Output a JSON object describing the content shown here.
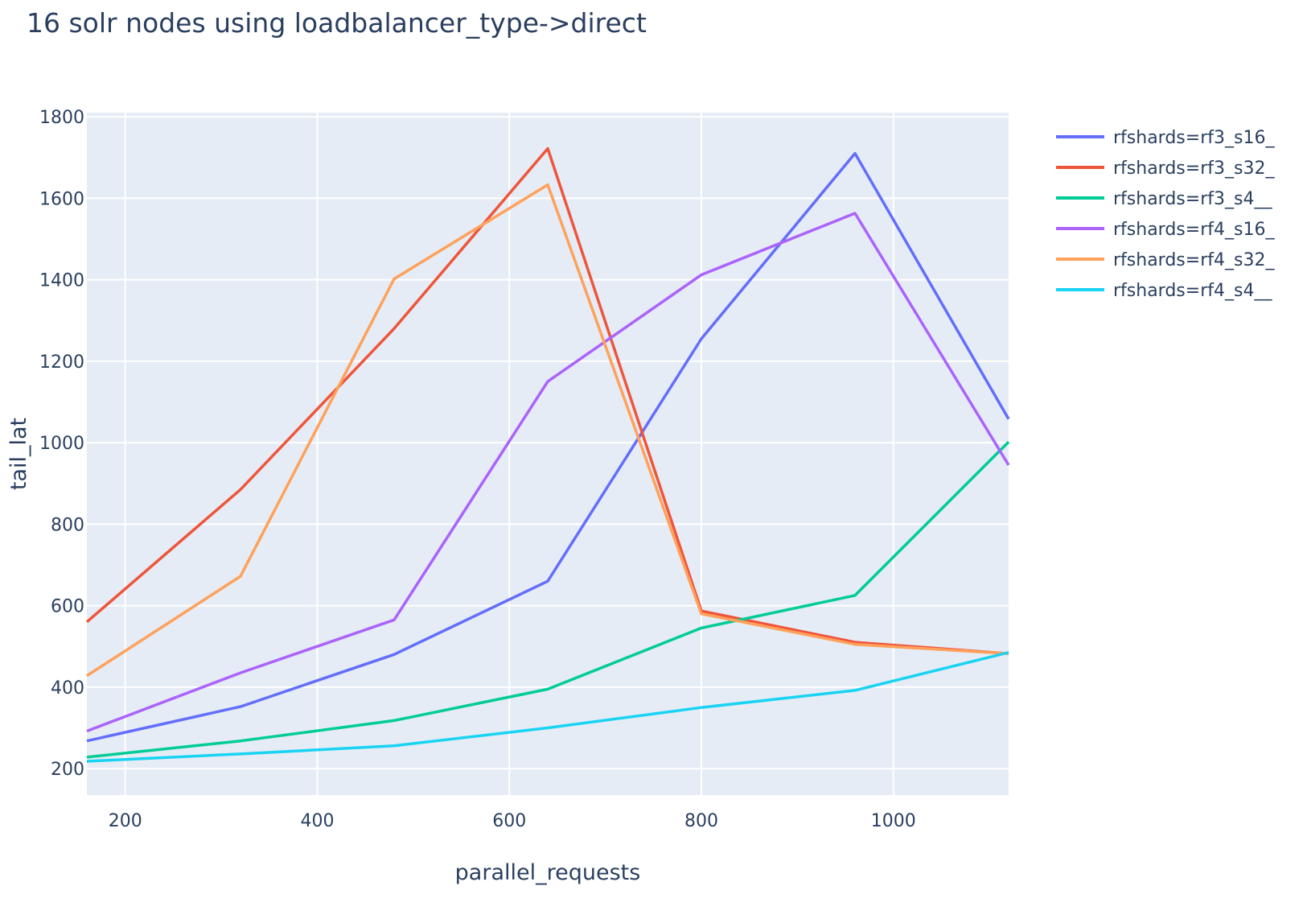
{
  "chart_data": {
    "type": "line",
    "title": "16 solr nodes using loadbalancer_type->direct",
    "xlabel": "parallel_requests",
    "ylabel": "tail_lat",
    "xlim": [
      160,
      1120
    ],
    "ylim": [
      135,
      1810
    ],
    "x_ticks": [
      200,
      400,
      600,
      800,
      1000
    ],
    "y_ticks": [
      200,
      400,
      600,
      800,
      1000,
      1200,
      1400,
      1600,
      1800
    ],
    "grid": true,
    "legend_position": "right",
    "x": [
      160,
      320,
      480,
      640,
      800,
      960,
      1120
    ],
    "series": [
      {
        "name": "rfshards=rf3_s16_",
        "color": "#636efa",
        "values": [
          268,
          352,
          480,
          660,
          1255,
          1710,
          1058
        ]
      },
      {
        "name": "rfshards=rf3_s32_",
        "color": "#EF553B",
        "values": [
          560,
          885,
          1280,
          1722,
          587,
          510,
          482
        ]
      },
      {
        "name": "rfshards=rf3_s4__",
        "color": "#00cc96",
        "values": [
          228,
          268,
          318,
          395,
          545,
          625,
          1002
        ]
      },
      {
        "name": "rfshards=rf4_s16_",
        "color": "#ab63fa",
        "values": [
          292,
          435,
          565,
          1150,
          1412,
          1563,
          945
        ]
      },
      {
        "name": "rfshards=rf4_s32_",
        "color": "#FFA15A",
        "values": [
          428,
          672,
          1402,
          1633,
          580,
          505,
          482
        ]
      },
      {
        "name": "rfshards=rf4_s4__",
        "color": "#19d3f3",
        "values": [
          218,
          236,
          256,
          300,
          350,
          392,
          485
        ]
      }
    ]
  }
}
